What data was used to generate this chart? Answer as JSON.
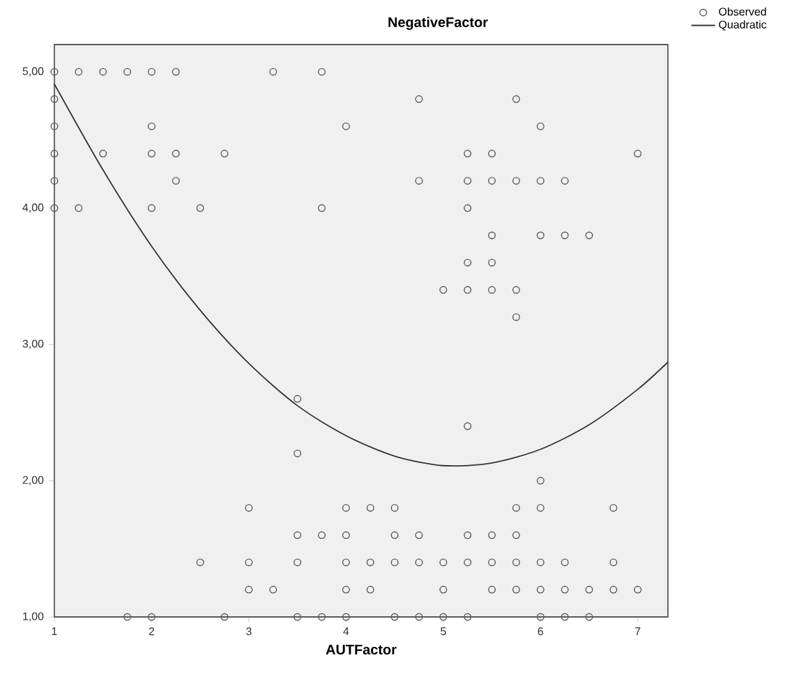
{
  "chart_data": {
    "type": "scatter",
    "title": "NegativeFactor",
    "xlabel": "AUTFactor",
    "xlim": [
      1,
      7.31
    ],
    "ylim": [
      1,
      5.2
    ],
    "xticks": [
      1,
      2,
      3,
      4,
      5,
      6,
      7
    ],
    "yticks": [
      {
        "value": 1,
        "label": "1,00"
      },
      {
        "value": 2,
        "label": "2,00"
      },
      {
        "value": 3,
        "label": "3,00"
      },
      {
        "value": 4,
        "label": "4,00"
      },
      {
        "value": 5,
        "label": "5,00"
      }
    ],
    "grid": false,
    "legend": "top right",
    "series": [
      {
        "name": "Observed",
        "type": "scatter",
        "marker": "circle",
        "color": "#5a5a5a",
        "x": [
          1,
          1.25,
          1.5,
          1.75,
          2,
          2.25,
          3.25,
          3.75,
          1,
          4.75,
          5.75,
          1,
          2,
          4,
          6,
          1,
          1.5,
          2,
          2.25,
          2.75,
          5.25,
          5.5,
          7,
          1,
          2.25,
          4.75,
          5.25,
          5.5,
          5.75,
          6,
          6.25,
          1,
          1.25,
          2,
          2.5,
          3.75,
          5.25,
          5.5,
          6,
          6.25,
          6.5,
          5.25,
          5.5,
          5,
          5.25,
          5.5,
          5.75,
          5.75,
          3.5,
          5.25,
          3.5,
          6,
          3,
          4,
          4.25,
          4.5,
          5.75,
          6,
          6.75,
          3.5,
          3.75,
          4,
          4.5,
          4.75,
          5.25,
          5.5,
          5.75,
          2.5,
          3,
          3.5,
          4,
          4.25,
          4.5,
          4.75,
          5,
          5.25,
          5.5,
          5.75,
          6,
          6.25,
          6.75,
          3,
          3.25,
          4,
          4.25,
          5,
          5.5,
          5.75,
          6,
          6.25,
          6.5,
          6.75,
          7,
          1.75,
          2,
          2.75,
          3.5,
          3.75,
          4,
          4.5,
          4.75,
          5,
          5.25,
          6,
          6.25,
          6.5
        ],
        "values": [
          5,
          5,
          5,
          5,
          5,
          5,
          5,
          5,
          4.8,
          4.8,
          4.8,
          4.6,
          4.6,
          4.6,
          4.6,
          4.4,
          4.4,
          4.4,
          4.4,
          4.4,
          4.4,
          4.4,
          4.4,
          4.2,
          4.2,
          4.2,
          4.2,
          4.2,
          4.2,
          4.2,
          4.2,
          4,
          4,
          4,
          4,
          4,
          4,
          3.8,
          3.8,
          3.8,
          3.8,
          3.6,
          3.6,
          3.4,
          3.4,
          3.4,
          3.4,
          3.2,
          2.6,
          2.4,
          2.2,
          2,
          1.8,
          1.8,
          1.8,
          1.8,
          1.8,
          1.8,
          1.8,
          1.6,
          1.6,
          1.6,
          1.6,
          1.6,
          1.6,
          1.6,
          1.6,
          1.4,
          1.4,
          1.4,
          1.4,
          1.4,
          1.4,
          1.4,
          1.4,
          1.4,
          1.4,
          1.4,
          1.4,
          1.4,
          1.4,
          1.2,
          1.2,
          1.2,
          1.2,
          1.2,
          1.2,
          1.2,
          1.2,
          1.2,
          1.2,
          1.2,
          1.2,
          1,
          1,
          1,
          1,
          1,
          1,
          1,
          1,
          1,
          1,
          1,
          1,
          1
        ]
      },
      {
        "name": "Quadratic",
        "type": "line",
        "marker": "none",
        "line_style": "solid",
        "color": "#333333",
        "x": [
          1,
          1.5,
          2,
          2.5,
          3,
          3.5,
          4,
          4.5,
          5,
          5.5,
          6,
          6.5,
          7,
          7.31
        ],
        "values": [
          4.91,
          4.28,
          3.72,
          3.25,
          2.86,
          2.55,
          2.33,
          2.18,
          2.11,
          2.13,
          2.23,
          2.41,
          2.67,
          2.87
        ]
      }
    ]
  }
}
